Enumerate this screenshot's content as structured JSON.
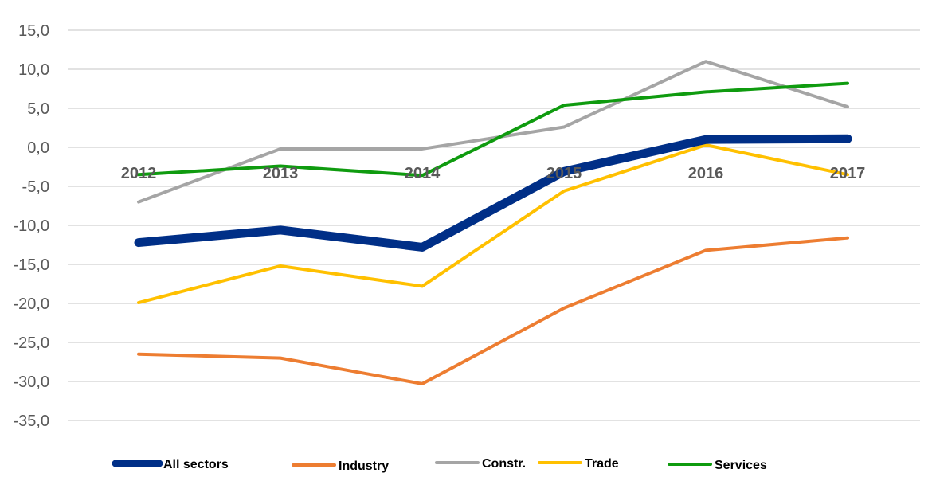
{
  "chart_data": {
    "type": "line",
    "title": "",
    "xlabel": "",
    "ylabel": "",
    "categories": [
      "2012",
      "2013",
      "2014",
      "2015",
      "2016",
      "2017"
    ],
    "ylim": [
      -35,
      15
    ],
    "yticks": [
      15,
      10,
      5,
      0,
      -5,
      -10,
      -15,
      -20,
      -25,
      -30,
      -35
    ],
    "ytick_labels": [
      "15,0",
      "10,0",
      "5,0",
      "0,0",
      "-5,0",
      "-10,0",
      "-15,0",
      "-20,0",
      "-25,0",
      "-30,0",
      "-35,0"
    ],
    "grid": true,
    "legend_position": "bottom",
    "series": [
      {
        "name": "Constr.",
        "color": "#A5A5A5",
        "values": [
          -7.0,
          -0.2,
          -0.2,
          2.6,
          11.0,
          5.2
        ]
      },
      {
        "name": "Industry",
        "color": "#ED7D31",
        "values": [
          -26.5,
          -27.0,
          -30.3,
          -20.6,
          -13.2,
          -11.6
        ]
      },
      {
        "name": "Trade",
        "color": "#FFC000",
        "values": [
          -19.9,
          -15.2,
          -17.8,
          -5.6,
          0.3,
          -3.5
        ]
      },
      {
        "name": "All sectors",
        "color": "#002F87",
        "values": [
          -12.2,
          -10.6,
          -12.8,
          -3.1,
          1.0,
          1.1
        ]
      },
      {
        "name": "Services",
        "color": "#0F9B0F",
        "values": [
          -3.5,
          -2.4,
          -3.6,
          5.4,
          7.1,
          8.2
        ]
      }
    ],
    "legend_order": [
      "All sectors",
      "Industry",
      "Constr.",
      "Trade",
      "Services"
    ]
  }
}
